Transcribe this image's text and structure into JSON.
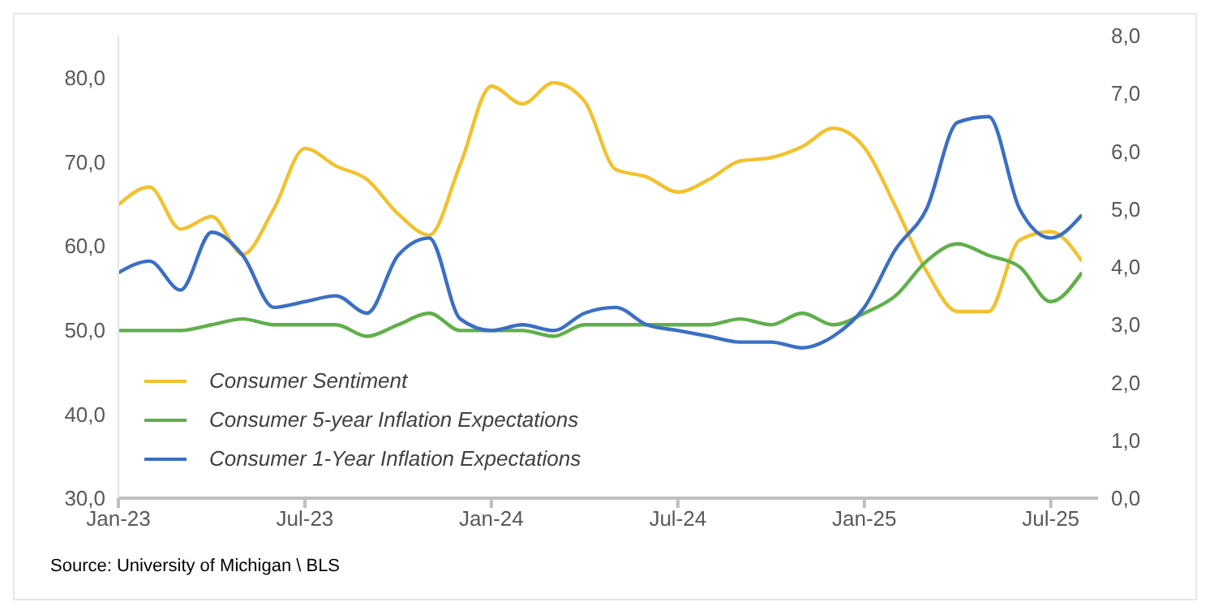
{
  "chart_data": {
    "type": "line",
    "categories": [
      "Jan-23",
      null,
      null,
      null,
      null,
      null,
      "Jul-23",
      null,
      null,
      null,
      null,
      null,
      "Jan-24",
      null,
      null,
      null,
      null,
      null,
      "Jul-24",
      null,
      null,
      null,
      null,
      null,
      "Jan-25",
      null,
      null,
      null,
      null,
      null,
      "Jul-25",
      null
    ],
    "series": [
      {
        "name": "Consumer Sentiment",
        "color": "#f2c12e",
        "values": [
          64.9,
          67.0,
          62.0,
          63.5,
          59.0,
          64.4,
          71.6,
          69.5,
          67.9,
          63.8,
          61.3,
          69.7,
          79.0,
          76.9,
          79.4,
          77.2,
          69.1,
          68.2,
          66.4,
          67.9,
          70.1,
          70.5,
          71.8,
          74.0,
          71.7,
          64.7,
          57.0,
          52.2,
          52.2,
          60.7,
          61.7,
          58.2
        ]
      },
      {
        "name": "Consumer 5-year Inflation Expectations",
        "color": "#5fb04a",
        "axis": "y2",
        "values": [
          2.9,
          2.9,
          2.9,
          3.0,
          3.1,
          3.0,
          3.0,
          3.0,
          2.8,
          3.0,
          3.2,
          2.9,
          2.9,
          2.9,
          2.8,
          3.0,
          3.0,
          3.0,
          3.0,
          3.0,
          3.1,
          3.0,
          3.2,
          3.0,
          3.2,
          3.5,
          4.1,
          4.4,
          4.2,
          4.0,
          3.4,
          3.9
        ]
      },
      {
        "name": "Consumer 1-Year Inflation Expectations",
        "color": "#3b6fc4",
        "axis": "y2",
        "values": [
          3.9,
          4.1,
          3.6,
          4.6,
          4.2,
          3.3,
          3.4,
          3.5,
          3.2,
          4.2,
          4.5,
          3.1,
          2.9,
          3.0,
          2.9,
          3.2,
          3.3,
          3.0,
          2.9,
          2.8,
          2.7,
          2.7,
          2.6,
          2.8,
          3.3,
          4.3,
          5.0,
          6.5,
          6.6,
          5.0,
          4.5,
          4.9
        ]
      }
    ],
    "ylim": [
      30,
      85
    ],
    "yticks": [
      {
        "value": 30,
        "label": "30,0"
      },
      {
        "value": 40,
        "label": "40,0"
      },
      {
        "value": 50,
        "label": "50,0"
      },
      {
        "value": 60,
        "label": "60,0"
      },
      {
        "value": 70,
        "label": "70,0"
      },
      {
        "value": 80,
        "label": "80,0"
      }
    ],
    "y2lim": [
      0,
      8
    ],
    "y2ticks": [
      {
        "value": 0,
        "label": "0,0"
      },
      {
        "value": 1,
        "label": "1,0"
      },
      {
        "value": 2,
        "label": "2,0"
      },
      {
        "value": 3,
        "label": "3,0"
      },
      {
        "value": 4,
        "label": "4,0"
      },
      {
        "value": 5,
        "label": "5,0"
      },
      {
        "value": 6,
        "label": "6,0"
      },
      {
        "value": 7,
        "label": "7,0"
      },
      {
        "value": 8,
        "label": "8,0"
      }
    ],
    "grid": false,
    "legend": "bottom left",
    "marker": "none",
    "line_style": "solid",
    "annotations": [
      "Source: University of Michigan \\ BLS"
    ]
  }
}
